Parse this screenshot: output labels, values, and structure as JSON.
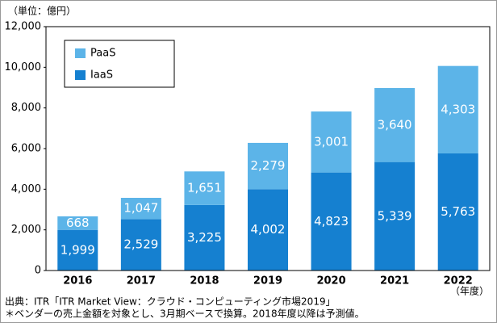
{
  "chart_data": {
    "type": "stacked-bar",
    "unit_label": "（単位：億円）",
    "x_unit_label": "（年度）",
    "source": "出典：ITR「ITR Market View：クラウド・コンピューティング市場2019」",
    "note": "＊ベンダーの売上金額を対象とし、3月期ベースで換算。2018年度以降は予測値。",
    "categories": [
      "2016",
      "2017",
      "2018",
      "2019",
      "2020",
      "2021",
      "2022"
    ],
    "series": [
      {
        "name": "IaaS",
        "color": "#1580d0",
        "values": [
          1999,
          2529,
          3225,
          4002,
          4823,
          5339,
          5763
        ],
        "value_labels": [
          "1,999",
          "2,529",
          "3,225",
          "4,002",
          "4,823",
          "5,339",
          "5,763"
        ]
      },
      {
        "name": "PaaS",
        "color": "#5cb4e8",
        "values": [
          668,
          1047,
          1651,
          2279,
          3001,
          3640,
          4303
        ],
        "value_labels": [
          "668",
          "1,047",
          "1,651",
          "2,279",
          "3,001",
          "3,640",
          "4,303"
        ]
      }
    ],
    "ylim": [
      0,
      12000
    ],
    "yticks": [
      0,
      {
        "value": 2000,
        "label": "2,000"
      },
      {
        "value": 4000,
        "label": "4,000"
      },
      {
        "value": 6000,
        "label": "6,000"
      },
      {
        "value": 8000,
        "label": "8,000"
      },
      {
        "value": 10000,
        "label": "10,000"
      },
      {
        "value": 12000,
        "label": "12,000"
      }
    ],
    "grid": false,
    "legend": "top-left"
  }
}
